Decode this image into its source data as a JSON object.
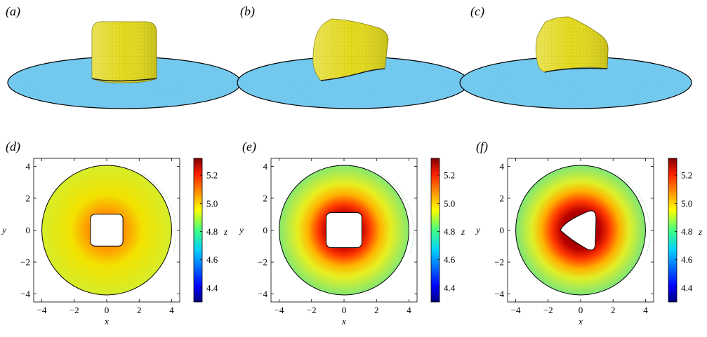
{
  "figure": {
    "panel_labels": [
      "(a)",
      "(b)",
      "(c)",
      "(d)",
      "(e)",
      "(f)"
    ],
    "colors": {
      "disk": "#79ccf0",
      "disk_mesh": "#2a9fd6",
      "particle": "#e5dc1e",
      "particle_edge": "#b8b012",
      "outline": "#000000"
    }
  },
  "chart_data": [
    {
      "type": "heatmap",
      "panel": "(d)",
      "xlabel": "x",
      "ylabel": "y",
      "colorbar_label": "z",
      "xlim": [
        -4.5,
        4.5
      ],
      "ylim": [
        -4.5,
        4.5
      ],
      "xticks": [
        "−4",
        "−2",
        "0",
        "2",
        "4"
      ],
      "yticks": [
        "4",
        "2",
        "0",
        "−2",
        "−4"
      ],
      "colorbar_ticks": [
        "5.2",
        "5.0",
        "4.8",
        "4.6",
        "4.4"
      ],
      "colorbar_range": [
        4.3,
        5.32
      ],
      "domain_radius": 4.0,
      "hole": {
        "shape": "rounded-square",
        "half_width": 1.0
      },
      "z_center": 5.08,
      "z_edge": 4.97
    },
    {
      "type": "heatmap",
      "panel": "(e)",
      "xlabel": "x",
      "ylabel": "y",
      "colorbar_label": "z",
      "xlim": [
        -4.5,
        4.5
      ],
      "ylim": [
        -4.5,
        4.5
      ],
      "xticks": [
        "−4",
        "−2",
        "0",
        "2",
        "4"
      ],
      "yticks": [
        "4",
        "2",
        "0",
        "−2",
        "−4"
      ],
      "colorbar_ticks": [
        "5.2",
        "5.0",
        "4.8",
        "4.6",
        "4.4"
      ],
      "colorbar_range": [
        4.3,
        5.32
      ],
      "domain_radius": 4.0,
      "hole": {
        "shape": "rounded-square",
        "half_width": 1.1
      },
      "z_center": 5.32,
      "z_edge": 4.86
    },
    {
      "type": "heatmap",
      "panel": "(f)",
      "xlabel": "x",
      "ylabel": "y",
      "colorbar_label": "z",
      "xlim": [
        -4.5,
        4.5
      ],
      "ylim": [
        -4.5,
        4.5
      ],
      "xticks": [
        "−4",
        "−2",
        "0",
        "2",
        "4"
      ],
      "yticks": [
        "4",
        "2",
        "0",
        "−2",
        "−4"
      ],
      "colorbar_ticks": [
        "5.2",
        "5.0",
        "4.8",
        "4.6",
        "4.4"
      ],
      "colorbar_range": [
        4.3,
        5.32
      ],
      "domain_radius": 4.0,
      "hole": {
        "shape": "rounded-triangle"
      },
      "z_center": 5.32,
      "z_edge": 4.86
    }
  ]
}
